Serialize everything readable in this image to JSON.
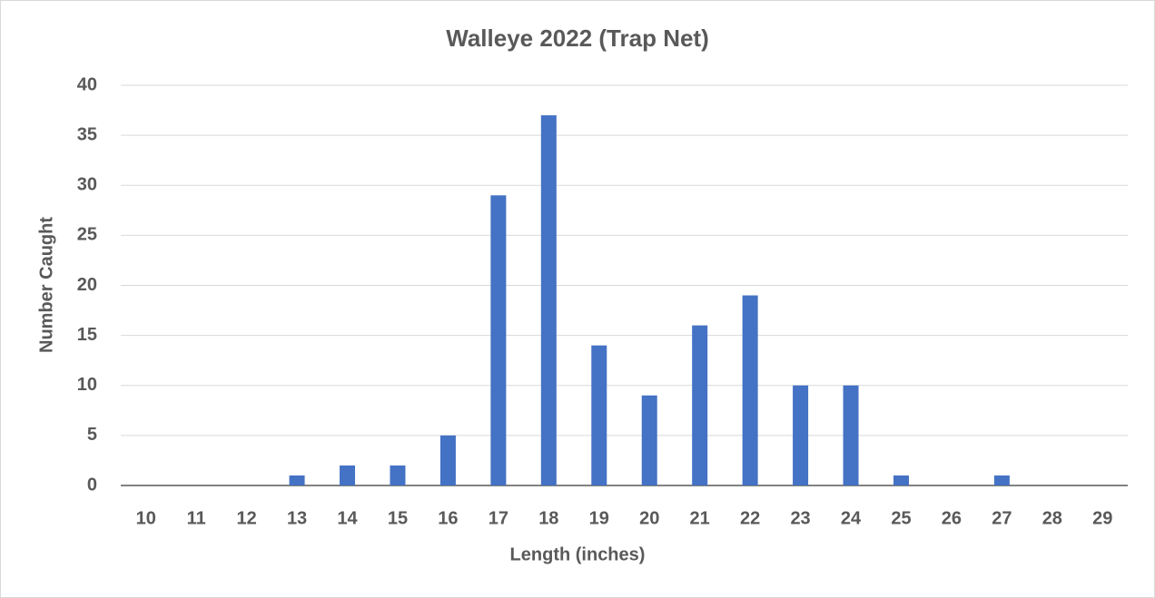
{
  "chart_data": {
    "type": "bar",
    "title": "Walleye 2022 (Trap Net)",
    "x_label": "Length (inches)",
    "y_label": "Number Caught",
    "categories": [
      "10",
      "11",
      "12",
      "13",
      "14",
      "15",
      "16",
      "17",
      "18",
      "19",
      "20",
      "21",
      "22",
      "23",
      "24",
      "25",
      "26",
      "27",
      "28",
      "29"
    ],
    "values": [
      0,
      0,
      0,
      1,
      2,
      2,
      5,
      29,
      37,
      14,
      9,
      16,
      19,
      10,
      10,
      1,
      0,
      1,
      0,
      0
    ],
    "color": "#4472c4",
    "ylim": [
      0,
      40
    ],
    "yticks": [
      0,
      5,
      10,
      15,
      20,
      25,
      30,
      35,
      40
    ],
    "grid": true
  }
}
